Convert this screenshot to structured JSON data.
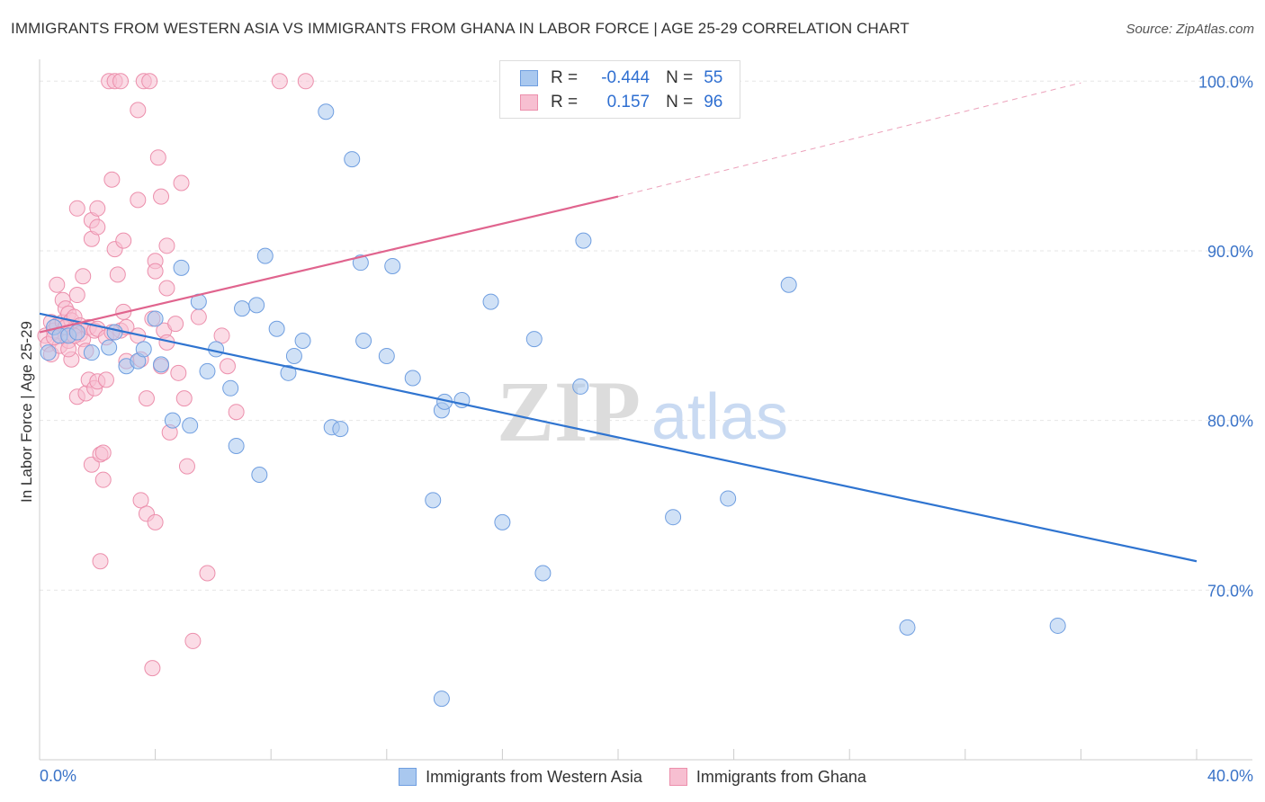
{
  "title": "IMMIGRANTS FROM WESTERN ASIA VS IMMIGRANTS FROM GHANA IN LABOR FORCE | AGE 25-29 CORRELATION CHART",
  "source": "Source: ZipAtlas.com",
  "watermark": {
    "zip": "ZIP",
    "atlas": "atlas"
  },
  "legend": {
    "rows": [
      {
        "r_label": "R =",
        "r_value": "-0.444",
        "n_label": "N =",
        "n_value": "55"
      },
      {
        "r_label": "R =",
        "r_value": "0.157",
        "n_label": "N =",
        "n_value": "96"
      }
    ]
  },
  "colors": {
    "blue_fill": "#a9c8ef",
    "blue_stroke": "#6f9ee0",
    "blue_line": "#2f74d0",
    "pink_fill": "#f7bfd1",
    "pink_stroke": "#ec8fac",
    "pink_line": "#e0648e",
    "tick_text": "#3a73c8",
    "grid": "#e6e6e6"
  },
  "chart_data": {
    "type": "scatter",
    "title": "IMMIGRANTS FROM WESTERN ASIA VS IMMIGRANTS FROM GHANA IN LABOR FORCE | AGE 25-29 CORRELATION CHART",
    "xlabel": "",
    "ylabel": "In Labor Force | Age 25-29",
    "xlim": [
      0,
      40
    ],
    "ylim": [
      60,
      101.5
    ],
    "x_tick_labels": [
      "0.0%",
      "40.0%"
    ],
    "y_ticks": [
      70,
      80,
      90,
      100
    ],
    "y_tick_labels": [
      "70.0%",
      "80.0%",
      "90.0%",
      "100.0%"
    ],
    "grid": true,
    "legend_position": "top-center",
    "series": [
      {
        "name": "Immigrants from Western Asia",
        "color": "blue",
        "trend": {
          "x": [
            0,
            40
          ],
          "y": [
            86.3,
            71.7
          ],
          "dashed_after": null
        },
        "points": [
          [
            0.3,
            84.0
          ],
          [
            0.5,
            85.5
          ],
          [
            0.7,
            85.0
          ],
          [
            1.0,
            85.0
          ],
          [
            1.3,
            85.2
          ],
          [
            1.8,
            84.0
          ],
          [
            2.4,
            84.3
          ],
          [
            2.6,
            85.2
          ],
          [
            3.0,
            83.2
          ],
          [
            3.4,
            83.5
          ],
          [
            3.6,
            84.2
          ],
          [
            4.0,
            86.0
          ],
          [
            4.2,
            83.3
          ],
          [
            4.6,
            80.0
          ],
          [
            4.9,
            89.0
          ],
          [
            5.2,
            79.7
          ],
          [
            5.5,
            87.0
          ],
          [
            5.8,
            82.9
          ],
          [
            6.1,
            84.2
          ],
          [
            6.6,
            81.9
          ],
          [
            6.8,
            78.5
          ],
          [
            7.0,
            86.6
          ],
          [
            7.5,
            86.8
          ],
          [
            7.6,
            76.8
          ],
          [
            7.8,
            89.7
          ],
          [
            8.2,
            85.4
          ],
          [
            8.6,
            82.8
          ],
          [
            8.8,
            83.8
          ],
          [
            9.1,
            84.7
          ],
          [
            9.9,
            98.2
          ],
          [
            10.1,
            79.6
          ],
          [
            10.4,
            79.5
          ],
          [
            10.8,
            95.4
          ],
          [
            11.1,
            89.3
          ],
          [
            11.2,
            84.7
          ],
          [
            12.0,
            83.8
          ],
          [
            12.2,
            89.1
          ],
          [
            12.9,
            82.5
          ],
          [
            13.6,
            75.3
          ],
          [
            13.9,
            63.6
          ],
          [
            13.9,
            80.6
          ],
          [
            14.0,
            81.1
          ],
          [
            14.6,
            81.2
          ],
          [
            15.6,
            87.0
          ],
          [
            16.0,
            74.0
          ],
          [
            17.1,
            84.8
          ],
          [
            17.4,
            71.0
          ],
          [
            18.7,
            82.0
          ],
          [
            18.8,
            90.6
          ],
          [
            21.9,
            74.3
          ],
          [
            23.8,
            75.4
          ],
          [
            25.9,
            88.0
          ],
          [
            30.0,
            67.8
          ],
          [
            35.2,
            67.9
          ]
        ]
      },
      {
        "name": "Immigrants from Ghana",
        "color": "pink",
        "trend": {
          "x": [
            0,
            20
          ],
          "y": [
            85.2,
            93.2
          ],
          "dashed_to": {
            "x": 36,
            "y": 99.9
          }
        },
        "points": [
          [
            0.2,
            85.0
          ],
          [
            0.3,
            84.5
          ],
          [
            0.4,
            85.8
          ],
          [
            0.4,
            83.9
          ],
          [
            0.5,
            85.3
          ],
          [
            0.6,
            88.0
          ],
          [
            0.6,
            85.6
          ],
          [
            0.7,
            84.4
          ],
          [
            0.8,
            87.1
          ],
          [
            0.8,
            85.8
          ],
          [
            0.9,
            86.6
          ],
          [
            0.9,
            85.0
          ],
          [
            1.0,
            86.3
          ],
          [
            1.0,
            84.7
          ],
          [
            1.1,
            85.9
          ],
          [
            1.1,
            83.6
          ],
          [
            1.2,
            85.4
          ],
          [
            1.2,
            86.1
          ],
          [
            1.3,
            92.5
          ],
          [
            1.3,
            87.4
          ],
          [
            1.3,
            81.4
          ],
          [
            1.4,
            85.6
          ],
          [
            1.4,
            85.1
          ],
          [
            1.5,
            88.5
          ],
          [
            1.5,
            84.8
          ],
          [
            1.6,
            81.6
          ],
          [
            1.6,
            84.1
          ],
          [
            1.7,
            82.4
          ],
          [
            1.7,
            85.5
          ],
          [
            1.8,
            91.8
          ],
          [
            1.8,
            90.7
          ],
          [
            1.8,
            77.4
          ],
          [
            1.9,
            85.3
          ],
          [
            1.9,
            81.9
          ],
          [
            2.0,
            92.5
          ],
          [
            2.0,
            91.4
          ],
          [
            2.0,
            85.4
          ],
          [
            2.0,
            82.3
          ],
          [
            2.1,
            78.0
          ],
          [
            2.1,
            71.7
          ],
          [
            2.2,
            76.5
          ],
          [
            2.2,
            78.1
          ],
          [
            2.3,
            84.9
          ],
          [
            2.3,
            82.4
          ],
          [
            2.4,
            100.0
          ],
          [
            2.5,
            94.2
          ],
          [
            2.6,
            100.0
          ],
          [
            2.6,
            90.1
          ],
          [
            2.7,
            88.6
          ],
          [
            2.8,
            85.3
          ],
          [
            2.8,
            100.0
          ],
          [
            2.9,
            86.4
          ],
          [
            2.9,
            90.6
          ],
          [
            3.0,
            85.5
          ],
          [
            3.0,
            83.5
          ],
          [
            3.4,
            85.0
          ],
          [
            3.4,
            93.0
          ],
          [
            3.4,
            98.3
          ],
          [
            3.5,
            83.6
          ],
          [
            3.5,
            75.3
          ],
          [
            3.6,
            100.0
          ],
          [
            3.7,
            81.3
          ],
          [
            3.7,
            74.5
          ],
          [
            3.8,
            100.0
          ],
          [
            3.9,
            86.0
          ],
          [
            3.9,
            65.4
          ],
          [
            4.0,
            89.4
          ],
          [
            4.0,
            88.8
          ],
          [
            4.0,
            74.0
          ],
          [
            4.1,
            95.5
          ],
          [
            4.2,
            93.2
          ],
          [
            4.2,
            83.2
          ],
          [
            4.3,
            85.3
          ],
          [
            4.4,
            90.3
          ],
          [
            4.4,
            84.6
          ],
          [
            4.4,
            87.8
          ],
          [
            4.5,
            79.3
          ],
          [
            4.7,
            85.7
          ],
          [
            4.8,
            82.8
          ],
          [
            4.9,
            94.0
          ],
          [
            5.0,
            81.3
          ],
          [
            5.1,
            77.3
          ],
          [
            5.3,
            67.0
          ],
          [
            5.5,
            86.1
          ],
          [
            5.8,
            71.0
          ],
          [
            6.3,
            85.0
          ],
          [
            6.5,
            83.2
          ],
          [
            6.8,
            80.5
          ],
          [
            8.3,
            100.0
          ],
          [
            9.2,
            100.0
          ],
          [
            0.5,
            84.9
          ],
          [
            0.9,
            85.5
          ],
          [
            1.2,
            85.0
          ],
          [
            2.5,
            85.2
          ],
          [
            1.0,
            84.2
          ]
        ]
      }
    ]
  },
  "bottom_legend": {
    "items": [
      "Immigrants from Western Asia",
      "Immigrants from Ghana"
    ]
  }
}
